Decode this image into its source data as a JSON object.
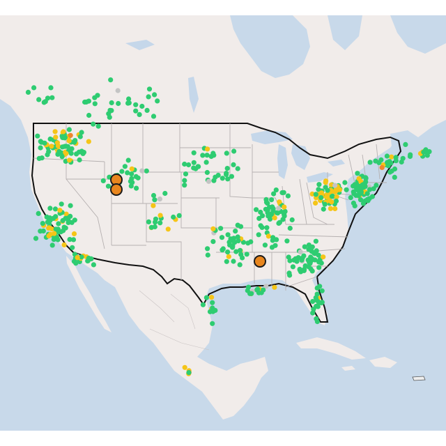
{
  "map": {
    "colors": {
      "water": "#c8d9ea",
      "land": "#f1ecea",
      "land_alt": "#ece6e4",
      "border_national": "#111111",
      "border_state": "#b5b0b0",
      "lake": "#c5d7ea"
    },
    "legend_categories": [
      {
        "key": "good",
        "color": "#2ecc71"
      },
      {
        "key": "moderate",
        "color": "#f5c518"
      },
      {
        "key": "unhealthy_sensitive",
        "color": "#f0852d"
      },
      {
        "key": "no_data",
        "color": "#c4c4c4"
      }
    ],
    "highlight_color": "#e8861e",
    "highlight_stroke": "#1a1a1a"
  }
}
